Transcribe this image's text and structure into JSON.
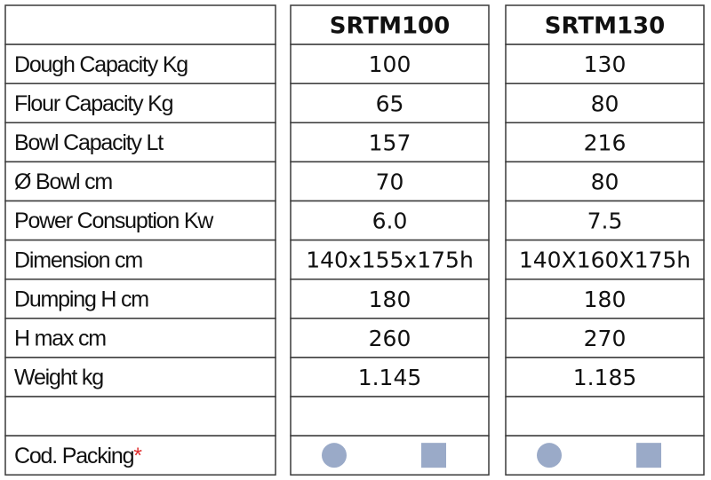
{
  "table": {
    "columns": [
      "SRTM100",
      "SRTM130"
    ],
    "rows": [
      {
        "label": "Dough Capacity Kg",
        "values": [
          "100",
          "130"
        ]
      },
      {
        "label": "Flour Capacity Kg",
        "values": [
          "65",
          "80"
        ]
      },
      {
        "label": "Bowl Capacity Lt",
        "values": [
          "157",
          "216"
        ]
      },
      {
        "label": "Ø Bowl cm",
        "values": [
          "70",
          "80"
        ]
      },
      {
        "label": "Power Consuption Kw",
        "values": [
          "6.0",
          "7.5"
        ]
      },
      {
        "label": "Dimension cm",
        "values": [
          "140x155x175h",
          "140X160X175h"
        ]
      },
      {
        "label": "Dumping H cm",
        "values": [
          "180",
          "180"
        ]
      },
      {
        "label": "H max cm",
        "values": [
          "260",
          "270"
        ]
      },
      {
        "label": "Weight kg",
        "values": [
          "1.145",
          "1.185"
        ]
      }
    ]
  },
  "packing": {
    "label": "Cod. Packing",
    "marker": "*"
  }
}
